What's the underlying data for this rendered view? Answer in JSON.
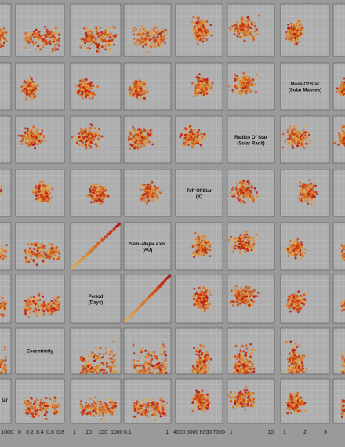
{
  "chart_data": {
    "type": "scatter",
    "title": "",
    "description_of_layout": "scatterplot matrix (cropped view)",
    "variables": [
      {
        "key": "p0",
        "label": "",
        "partial": true
      },
      {
        "key": "ecc",
        "label": "Eccentricity",
        "ticks": [
          "0",
          "0.2",
          "0.4",
          "0.6",
          "0.8"
        ]
      },
      {
        "key": "per",
        "label": "Period\n(Days)",
        "ticks": [
          "1",
          "10",
          "100",
          "1000"
        ]
      },
      {
        "key": "sma",
        "label": "Semi-Major Axis\n(AU)",
        "ticks": [
          "0.1",
          "1"
        ]
      },
      {
        "key": "teff",
        "label": "Teff Of Star\n(K)",
        "ticks": [
          "4000",
          "5000",
          "6000",
          "7000"
        ]
      },
      {
        "key": "rstar",
        "label": "Radius Of Star\n(Solar Radii)",
        "ticks": [
          "1",
          "10"
        ]
      },
      {
        "key": "mstar",
        "label": "Mass Of Star\n(Solar Masses)",
        "ticks": [
          "1",
          "2",
          "3"
        ]
      },
      {
        "key": "p7",
        "label": "",
        "partial": true
      }
    ],
    "partial_labels": {
      "row_bottom_left": "tar",
      "col_left_tick": "1000"
    },
    "grid": true,
    "colors": {
      "panel_bg": "#bdbdbd",
      "outer_bg": "#a8a8a8",
      "point_low": "#f0c060",
      "point_high": "#c8100a",
      "gridline": "#d4d4d4",
      "border": "#6e6e6e"
    },
    "series": [
      {
        "values_note": "points colored yellow→red by a continuous variable"
      }
    ]
  }
}
